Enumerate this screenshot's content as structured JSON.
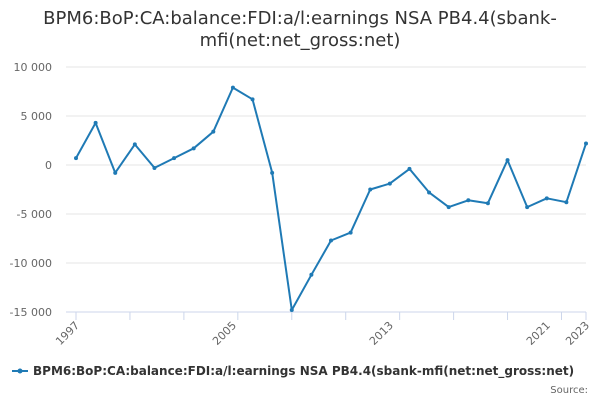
{
  "chart_data": {
    "type": "line",
    "title_lines": [
      "BPM6:BoP:CA:balance:FDI:a/l:earnings NSA PB4.4(sbank-",
      "mfi(net:net_gross:net)"
    ],
    "x": [
      1997,
      1998,
      1999,
      2000,
      2001,
      2002,
      2003,
      2004,
      2005,
      2006,
      2007,
      2008,
      2009,
      2010,
      2011,
      2012,
      2013,
      2014,
      2015,
      2016,
      2017,
      2018,
      2019,
      2020,
      2021,
      2022,
      2023
    ],
    "x_tick_values": [
      1997,
      2005,
      2013,
      2021,
      2023
    ],
    "x_tick_labels": [
      "1997",
      "2005",
      "2013",
      "2021",
      "2023"
    ],
    "xlim": [
      1997,
      2023
    ],
    "series": [
      {
        "name": "BPM6:BoP:CA:balance:FDI:a/l:earnings NSA PB4.4(sbank-mfi(net:net_gross:net)",
        "color": "#1f7ab5",
        "values": [
          700,
          4300,
          -800,
          2100,
          -300,
          700,
          1700,
          3400,
          7900,
          6700,
          -800,
          -14800,
          -11200,
          -7700,
          -6900,
          -2500,
          -1900,
          -400,
          -2800,
          -4300,
          -3600,
          -3900,
          500,
          -4300,
          -3400,
          -3800,
          2200
        ]
      }
    ],
    "ylim": [
      -15000,
      10000
    ],
    "y_ticks": [
      10000,
      5000,
      0,
      -5000,
      -10000,
      -15000
    ],
    "y_tick_labels": [
      "10 000",
      "5 000",
      "0",
      "-5 000",
      "-10 000",
      "-15 000"
    ],
    "grid": true,
    "legend_position": "bottom",
    "credits": "Source:"
  }
}
